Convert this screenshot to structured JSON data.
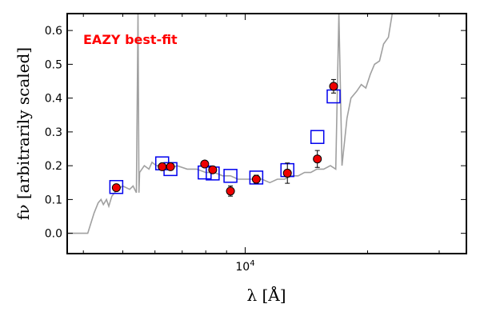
{
  "chart_data": {
    "type": "scatter",
    "x_scale": "log",
    "xlim": [
      3650,
      35000
    ],
    "ylim": [
      -0.06,
      0.65
    ],
    "y_ticks": [
      0.0,
      0.1,
      0.2,
      0.3,
      0.4,
      0.5,
      0.6
    ],
    "y_tick_labels": [
      "0.0",
      "0.1",
      "0.2",
      "0.3",
      "0.4",
      "0.5",
      "0.6"
    ],
    "x_tick_labels": [
      {
        "value": 10000,
        "base": "10",
        "exp": "4"
      }
    ],
    "xlabel": "λ [Å]",
    "ylabel": "fν [arbitrarily scaled]",
    "annotation": "EAZY best-fit",
    "colors": {
      "template": "#a0a0a0",
      "model_box": "#0000ee",
      "observed": "#ee0000",
      "annotation": "#ff0000"
    },
    "template": {
      "name": "EAZY best-fit",
      "points": [
        [
          3650,
          0.0
        ],
        [
          4100,
          0.0
        ],
        [
          4250,
          0.06
        ],
        [
          4350,
          0.09
        ],
        [
          4420,
          0.1
        ],
        [
          4480,
          0.085
        ],
        [
          4560,
          0.1
        ],
        [
          4620,
          0.08
        ],
        [
          4700,
          0.11
        ],
        [
          4850,
          0.13
        ],
        [
          5000,
          0.14
        ],
        [
          5200,
          0.13
        ],
        [
          5300,
          0.14
        ],
        [
          5400,
          0.12
        ],
        [
          5450,
          0.65
        ],
        [
          5480,
          0.12
        ],
        [
          5500,
          0.18
        ],
        [
          5650,
          0.2
        ],
        [
          5800,
          0.19
        ],
        [
          5900,
          0.21
        ],
        [
          6050,
          0.2
        ],
        [
          6200,
          0.2
        ],
        [
          6300,
          0.19
        ],
        [
          6500,
          0.19
        ],
        [
          6800,
          0.2
        ],
        [
          7200,
          0.19
        ],
        [
          7600,
          0.19
        ],
        [
          8000,
          0.18
        ],
        [
          8400,
          0.18
        ],
        [
          8800,
          0.17
        ],
        [
          9200,
          0.17
        ],
        [
          9600,
          0.16
        ],
        [
          10000,
          0.16
        ],
        [
          10500,
          0.16
        ],
        [
          11000,
          0.16
        ],
        [
          11500,
          0.15
        ],
        [
          12000,
          0.16
        ],
        [
          12500,
          0.16
        ],
        [
          13000,
          0.17
        ],
        [
          13500,
          0.17
        ],
        [
          14000,
          0.18
        ],
        [
          14500,
          0.18
        ],
        [
          15000,
          0.19
        ],
        [
          15600,
          0.19
        ],
        [
          16200,
          0.2
        ],
        [
          16700,
          0.19
        ],
        [
          17000,
          0.65
        ],
        [
          17300,
          0.2
        ],
        [
          17800,
          0.34
        ],
        [
          18200,
          0.4
        ],
        [
          18800,
          0.42
        ],
        [
          19300,
          0.44
        ],
        [
          19800,
          0.43
        ],
        [
          20300,
          0.47
        ],
        [
          20800,
          0.5
        ],
        [
          21400,
          0.51
        ],
        [
          21900,
          0.56
        ],
        [
          22500,
          0.58
        ],
        [
          23000,
          0.65
        ]
      ]
    },
    "model_photometry": [
      {
        "wavelength": 4820,
        "flux": 0.137
      },
      {
        "wavelength": 6250,
        "flux": 0.207
      },
      {
        "wavelength": 6550,
        "flux": 0.19
      },
      {
        "wavelength": 7950,
        "flux": 0.18
      },
      {
        "wavelength": 8320,
        "flux": 0.177
      },
      {
        "wavelength": 9200,
        "flux": 0.17
      },
      {
        "wavelength": 10650,
        "flux": 0.165
      },
      {
        "wavelength": 12700,
        "flux": 0.187
      },
      {
        "wavelength": 15050,
        "flux": 0.285
      },
      {
        "wavelength": 16500,
        "flux": 0.405
      }
    ],
    "observed_photometry": [
      {
        "wavelength": 4820,
        "flux": 0.135,
        "err": 0.007
      },
      {
        "wavelength": 6250,
        "flux": 0.197,
        "err": 0.005
      },
      {
        "wavelength": 6550,
        "flux": 0.197,
        "err": 0.005
      },
      {
        "wavelength": 7950,
        "flux": 0.205,
        "err": 0.005
      },
      {
        "wavelength": 8320,
        "flux": 0.188,
        "err": 0.008
      },
      {
        "wavelength": 9200,
        "flux": 0.125,
        "err": 0.015
      },
      {
        "wavelength": 10650,
        "flux": 0.16,
        "err": 0.012
      },
      {
        "wavelength": 12700,
        "flux": 0.178,
        "err": 0.03
      },
      {
        "wavelength": 15050,
        "flux": 0.22,
        "err": 0.025
      },
      {
        "wavelength": 16500,
        "flux": 0.435,
        "err": 0.02
      }
    ]
  }
}
